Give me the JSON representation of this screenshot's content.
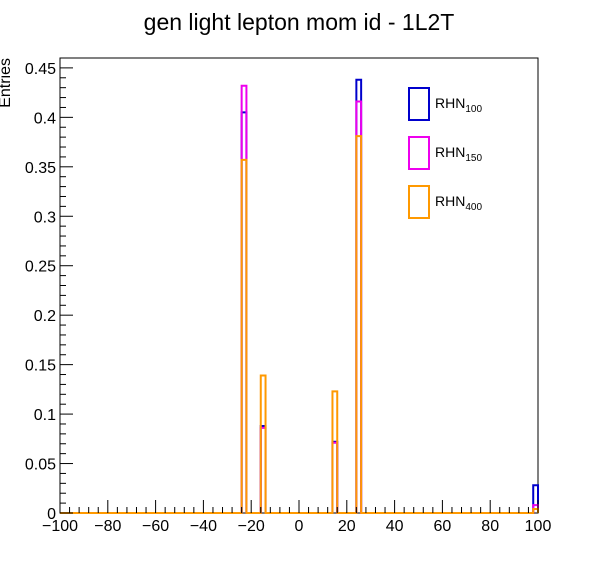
{
  "chart_data": {
    "type": "histogram-step",
    "title": "gen light lepton mom id - 1L2T",
    "xlabel": "",
    "ylabel": "Entries",
    "xlim": [
      -100,
      100
    ],
    "ylim": [
      0,
      0.46
    ],
    "bin_width": 2,
    "xticks": [
      -100,
      -80,
      -60,
      -40,
      -20,
      0,
      20,
      40,
      60,
      80,
      100
    ],
    "xtick_labels": [
      "−100",
      "−80",
      "−60",
      "−40",
      "−20",
      "0",
      "20",
      "40",
      "60",
      "80",
      "100"
    ],
    "yticks": [
      0,
      0.05,
      0.1,
      0.15,
      0.2,
      0.25,
      0.3,
      0.35,
      0.4,
      0.45
    ],
    "ytick_labels": [
      "0",
      "0.05",
      "0.1",
      "0.15",
      "0.2",
      "0.25",
      "0.3",
      "0.35",
      "0.4",
      "0.45"
    ],
    "grid": false,
    "legend_position": "top-right",
    "series": [
      {
        "legend_main": "RHN",
        "legend_sub": "100",
        "color": "#0000cc",
        "bins": [
          {
            "x": -24,
            "y": 0.405
          },
          {
            "x": -16,
            "y": 0.088
          },
          {
            "x": 14,
            "y": 0.072
          },
          {
            "x": 24,
            "y": 0.438
          },
          {
            "x": 98,
            "y": 0.028
          }
        ]
      },
      {
        "legend_main": "RHN",
        "legend_sub": "150",
        "color": "#ee00ee",
        "bins": [
          {
            "x": -24,
            "y": 0.432
          },
          {
            "x": -16,
            "y": 0.086
          },
          {
            "x": 14,
            "y": 0.071
          },
          {
            "x": 24,
            "y": 0.416
          },
          {
            "x": 98,
            "y": 0.008
          }
        ]
      },
      {
        "legend_main": "RHN",
        "legend_sub": "400",
        "color": "#ff9900",
        "bins": [
          {
            "x": -24,
            "y": 0.357
          },
          {
            "x": -16,
            "y": 0.139
          },
          {
            "x": 14,
            "y": 0.123
          },
          {
            "x": 24,
            "y": 0.381
          },
          {
            "x": 98,
            "y": 0.004
          }
        ]
      }
    ]
  }
}
